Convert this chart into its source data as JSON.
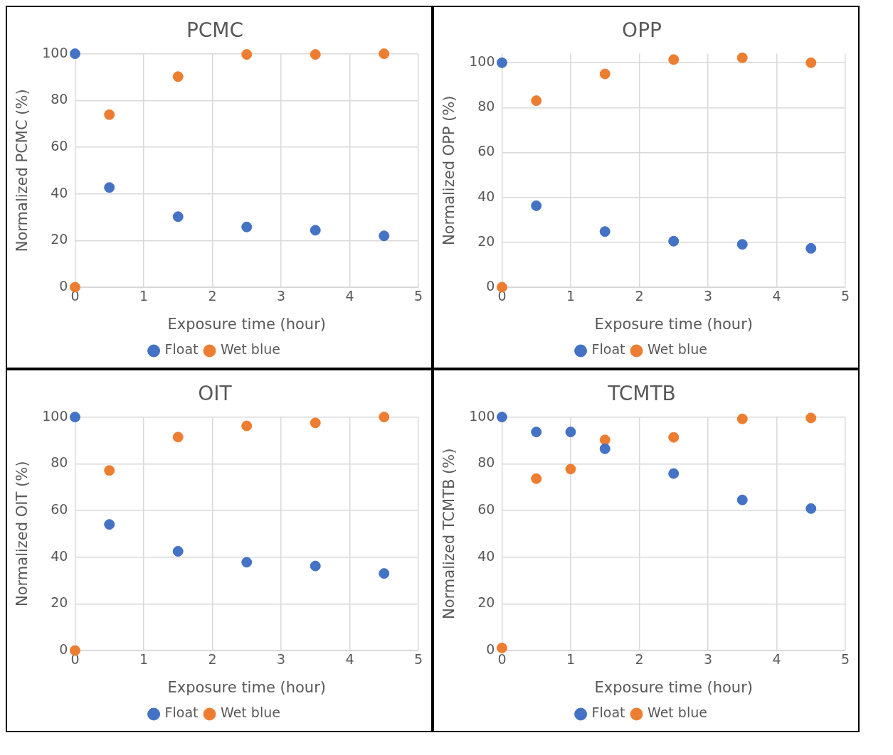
{
  "chart_data": [
    {
      "type": "scatter",
      "title": "PCMC",
      "xlabel": "Exposure time (hour)",
      "ylabel": "Normalized PCMC (%)",
      "xlim": [
        0,
        5
      ],
      "xticks": [
        0,
        1,
        2,
        3,
        4,
        5
      ],
      "ylim": [
        0,
        100
      ],
      "yticks": [
        0,
        20,
        40,
        60,
        80,
        100
      ],
      "grid": true,
      "legend": "bottom",
      "marker": "circle",
      "series": [
        {
          "name": "Float",
          "color": "#4472c4",
          "x": [
            0,
            0.5,
            1.5,
            2.5,
            3.5,
            4.5
          ],
          "values": [
            100,
            42.7,
            30.2,
            25.8,
            24.4,
            22
          ]
        },
        {
          "name": "Wet blue",
          "color": "#ed7d31",
          "x": [
            0,
            0.5,
            1.5,
            2.5,
            3.5,
            4.5
          ],
          "values": [
            0,
            73.9,
            90.2,
            99.7,
            99.7,
            100
          ]
        }
      ]
    },
    {
      "type": "scatter",
      "title": "OPP",
      "xlabel": "Exposure time (hour)",
      "ylabel": "Normalized OPP (%)",
      "xlim": [
        0,
        5
      ],
      "xticks": [
        0,
        1,
        2,
        3,
        4,
        5
      ],
      "ylim": [
        0,
        104
      ],
      "yticks": [
        0,
        20,
        40,
        60,
        80,
        100
      ],
      "grid": true,
      "legend": "bottom",
      "marker": "circle",
      "series": [
        {
          "name": "Float",
          "color": "#4472c4",
          "x": [
            0,
            0.5,
            1.5,
            2.5,
            3.5,
            4.5
          ],
          "values": [
            100,
            36.3,
            24.8,
            20.5,
            19.1,
            17.3
          ]
        },
        {
          "name": "Wet blue",
          "color": "#ed7d31",
          "x": [
            0,
            0.5,
            1.5,
            2.5,
            3.5,
            4.5
          ],
          "values": [
            0,
            83.1,
            95,
            101.4,
            102.2,
            100
          ]
        }
      ]
    },
    {
      "type": "scatter",
      "title": "OIT",
      "xlabel": "Exposure time (hour)",
      "ylabel": "Normalized OIT (%)",
      "xlim": [
        0,
        5
      ],
      "xticks": [
        0,
        1,
        2,
        3,
        4,
        5
      ],
      "ylim": [
        0,
        100
      ],
      "yticks": [
        0,
        20,
        40,
        60,
        80,
        100
      ],
      "grid": true,
      "legend": "bottom",
      "marker": "circle",
      "series": [
        {
          "name": "Float",
          "color": "#4472c4",
          "x": [
            0,
            0.5,
            1.5,
            2.5,
            3.5,
            4.5
          ],
          "values": [
            100,
            54,
            42.5,
            37.8,
            36.2,
            33
          ]
        },
        {
          "name": "Wet blue",
          "color": "#ed7d31",
          "x": [
            0,
            0.5,
            1.5,
            2.5,
            3.5,
            4.5
          ],
          "values": [
            0,
            77.1,
            91.4,
            96.2,
            97.5,
            100
          ]
        }
      ]
    },
    {
      "type": "scatter",
      "title": "TCMTB",
      "xlabel": "Exposure time (hour)",
      "ylabel": "Normalized TCMTB (%)",
      "xlim": [
        0,
        5
      ],
      "xticks": [
        0,
        1,
        2,
        3,
        4,
        5
      ],
      "ylim": [
        0,
        100
      ],
      "yticks": [
        0,
        20,
        40,
        60,
        80,
        100
      ],
      "grid": true,
      "legend": "bottom",
      "marker": "circle",
      "series": [
        {
          "name": "Float",
          "color": "#4472c4",
          "x": [
            0,
            0.5,
            1,
            1.5,
            2.5,
            3.5,
            4.5
          ],
          "values": [
            100,
            93.6,
            93.6,
            86.4,
            75.8,
            64.5,
            60.8
          ]
        },
        {
          "name": "Wet blue",
          "color": "#ed7d31",
          "x": [
            0,
            0.5,
            1,
            1.5,
            2.5,
            3.5,
            4.5
          ],
          "values": [
            1.1,
            73.6,
            77.7,
            90.2,
            91.3,
            99.2,
            99.6
          ]
        }
      ]
    }
  ]
}
